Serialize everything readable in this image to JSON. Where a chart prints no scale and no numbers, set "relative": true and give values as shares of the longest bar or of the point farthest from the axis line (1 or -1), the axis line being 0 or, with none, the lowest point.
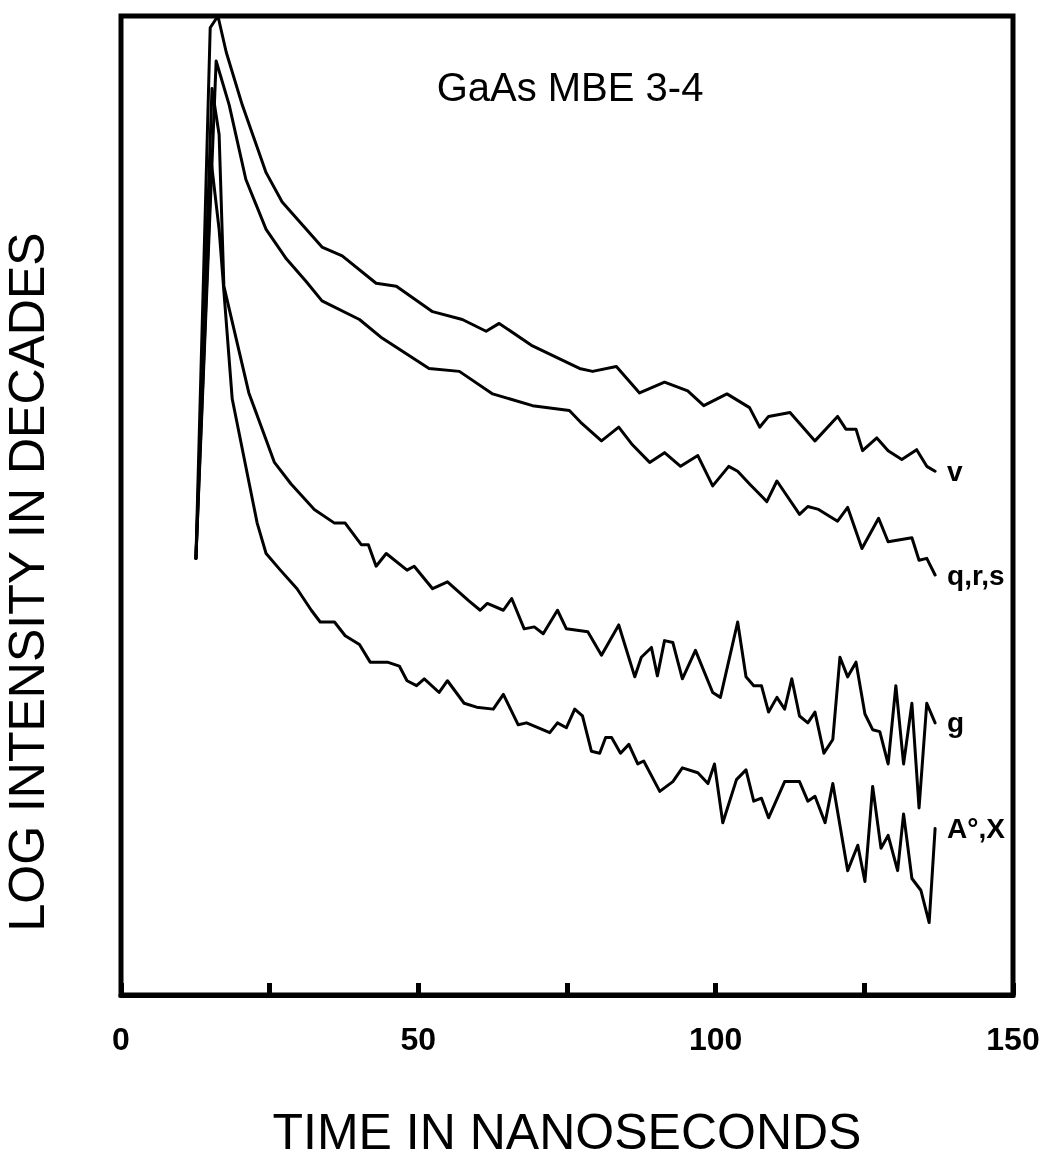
{
  "chart_data": {
    "type": "line",
    "title": "GaAs MBE 3-4",
    "xlabel": "TIME IN NANOSECONDS",
    "ylabel": "LOG INTENSITY IN DECADES",
    "relative": true,
    "xlim": [
      0,
      150
    ],
    "xticks": [
      0,
      {
        "value": 25,
        "label": null
      },
      50,
      {
        "value": 75,
        "label": null
      },
      100,
      {
        "value": 125,
        "label": null
      },
      150
    ],
    "grid": false,
    "legend": false,
    "marker": "none",
    "line_style": "solid",
    "series": [
      {
        "name": "v",
        "color": "#000000",
        "x": [
          12.6,
          15.0,
          16.3,
          17.7,
          20.4,
          24.4,
          27.1,
          30.0,
          33.8,
          37.2,
          42.9,
          46.3,
          52.4,
          57.4,
          61.4,
          63.6,
          69.2,
          77.1,
          79.3,
          83.3,
          87.2,
          91.4,
          95.3,
          98.0,
          101.9,
          105.7,
          107.4,
          108.9,
          112.5,
          116.7,
          120.5,
          121.9,
          123.6,
          124.7,
          127.1,
          129.0,
          131.3,
          133.8,
          135.5,
          136.9
        ],
        "values": [
          0.446,
          0.988,
          1.0,
          0.963,
          0.909,
          0.84,
          0.81,
          0.79,
          0.764,
          0.755,
          0.727,
          0.724,
          0.698,
          0.69,
          0.678,
          0.686,
          0.663,
          0.64,
          0.637,
          0.642,
          0.615,
          0.626,
          0.617,
          0.602,
          0.614,
          0.6,
          0.58,
          0.591,
          0.595,
          0.566,
          0.591,
          0.578,
          0.578,
          0.556,
          0.569,
          0.556,
          0.547,
          0.557,
          0.54,
          0.535
        ]
      },
      {
        "name": "q,r,s",
        "color": "#000000",
        "x": [
          12.6,
          16.0,
          18.2,
          21.0,
          24.4,
          27.8,
          31.1,
          33.8,
          40.1,
          43.9,
          51.8,
          56.9,
          62.5,
          69.2,
          75.4,
          77.3,
          80.8,
          83.7,
          86.0,
          88.9,
          91.4,
          94.1,
          97.0,
          99.5,
          102.2,
          103.7,
          105.7,
          108.6,
          110.3,
          114.1,
          115.5,
          117.3,
          120.5,
          122.2,
          124.6,
          127.4,
          129.0,
          133.0,
          134.2,
          135.5,
          136.9
        ],
        "values": [
          0.446,
          0.954,
          0.909,
          0.833,
          0.782,
          0.752,
          0.729,
          0.709,
          0.69,
          0.671,
          0.64,
          0.637,
          0.614,
          0.602,
          0.597,
          0.585,
          0.566,
          0.58,
          0.562,
          0.544,
          0.554,
          0.54,
          0.551,
          0.52,
          0.54,
          0.535,
          0.522,
          0.504,
          0.525,
          0.491,
          0.499,
          0.496,
          0.484,
          0.498,
          0.456,
          0.487,
          0.463,
          0.467,
          0.444,
          0.446,
          0.429
        ]
      },
      {
        "name": "g",
        "color": "#000000",
        "x": [
          12.6,
          15.3,
          16.5,
          17.3,
          21.5,
          25.8,
          28.6,
          32.5,
          35.9,
          37.7,
          40.4,
          41.6,
          42.9,
          44.6,
          48.1,
          49.3,
          52.4,
          54.9,
          58.4,
          60.4,
          61.6,
          64.3,
          65.7,
          67.8,
          69.5,
          71.0,
          73.4,
          74.9,
          78.5,
          80.8,
          83.7,
          86.4,
          87.5,
          89.2,
          90.2,
          91.4,
          92.8,
          94.4,
          96.6,
          99.5,
          100.8,
          103.7,
          105.1,
          106.4,
          107.7,
          108.9,
          110.3,
          111.6,
          112.8,
          114.1,
          115.5,
          116.7,
          118.2,
          119.7,
          120.9,
          122.2,
          123.6,
          125.1,
          126.4,
          127.6,
          129.0,
          130.3,
          131.6,
          133.0,
          134.2,
          135.5,
          136.9
        ],
        "values": [
          0.446,
          0.926,
          0.879,
          0.724,
          0.615,
          0.544,
          0.522,
          0.496,
          0.482,
          0.482,
          0.46,
          0.46,
          0.438,
          0.451,
          0.434,
          0.438,
          0.415,
          0.422,
          0.403,
          0.393,
          0.4,
          0.393,
          0.405,
          0.374,
          0.376,
          0.369,
          0.393,
          0.374,
          0.371,
          0.347,
          0.378,
          0.325,
          0.345,
          0.355,
          0.326,
          0.362,
          0.36,
          0.323,
          0.352,
          0.309,
          0.304,
          0.381,
          0.325,
          0.316,
          0.316,
          0.289,
          0.304,
          0.292,
          0.323,
          0.285,
          0.278,
          0.289,
          0.247,
          0.261,
          0.345,
          0.325,
          0.34,
          0.287,
          0.271,
          0.269,
          0.236,
          0.316,
          0.236,
          0.298,
          0.191,
          0.298,
          0.278
        ]
      },
      {
        "name": "A°,X",
        "color": "#000000",
        "x": [
          12.6,
          15.2,
          16.5,
          18.7,
          22.9,
          24.4,
          26.8,
          29.6,
          32.0,
          33.5,
          35.9,
          37.7,
          40.1,
          41.9,
          44.8,
          46.8,
          48.1,
          49.7,
          51.0,
          53.5,
          54.9,
          57.7,
          59.8,
          62.6,
          64.3,
          66.8,
          68.2,
          72.1,
          73.4,
          74.9,
          76.3,
          77.6,
          79.1,
          80.5,
          81.5,
          82.5,
          84.0,
          85.4,
          86.9,
          87.9,
          90.6,
          92.8,
          94.4,
          97.0,
          98.7,
          99.8,
          101.2,
          103.5,
          105.1,
          106.4,
          107.7,
          108.9,
          111.6,
          114.1,
          115.5,
          116.7,
          118.4,
          119.7,
          122.2,
          123.9,
          125.1,
          126.4,
          127.8,
          129.0,
          130.6,
          131.6,
          133.0,
          134.5,
          135.9,
          136.9
        ],
        "values": [
          0.446,
          0.85,
          0.782,
          0.609,
          0.482,
          0.451,
          0.434,
          0.415,
          0.393,
          0.381,
          0.381,
          0.367,
          0.358,
          0.34,
          0.34,
          0.336,
          0.321,
          0.316,
          0.323,
          0.309,
          0.321,
          0.298,
          0.294,
          0.292,
          0.307,
          0.276,
          0.278,
          0.268,
          0.278,
          0.273,
          0.292,
          0.285,
          0.249,
          0.247,
          0.263,
          0.263,
          0.247,
          0.256,
          0.236,
          0.239,
          0.208,
          0.218,
          0.232,
          0.227,
          0.216,
          0.236,
          0.176,
          0.22,
          0.23,
          0.198,
          0.201,
          0.181,
          0.218,
          0.218,
          0.198,
          0.203,
          0.176,
          0.216,
          0.127,
          0.153,
          0.116,
          0.213,
          0.15,
          0.163,
          0.127,
          0.185,
          0.119,
          0.107,
          0.074,
          0.17
        ]
      }
    ]
  }
}
